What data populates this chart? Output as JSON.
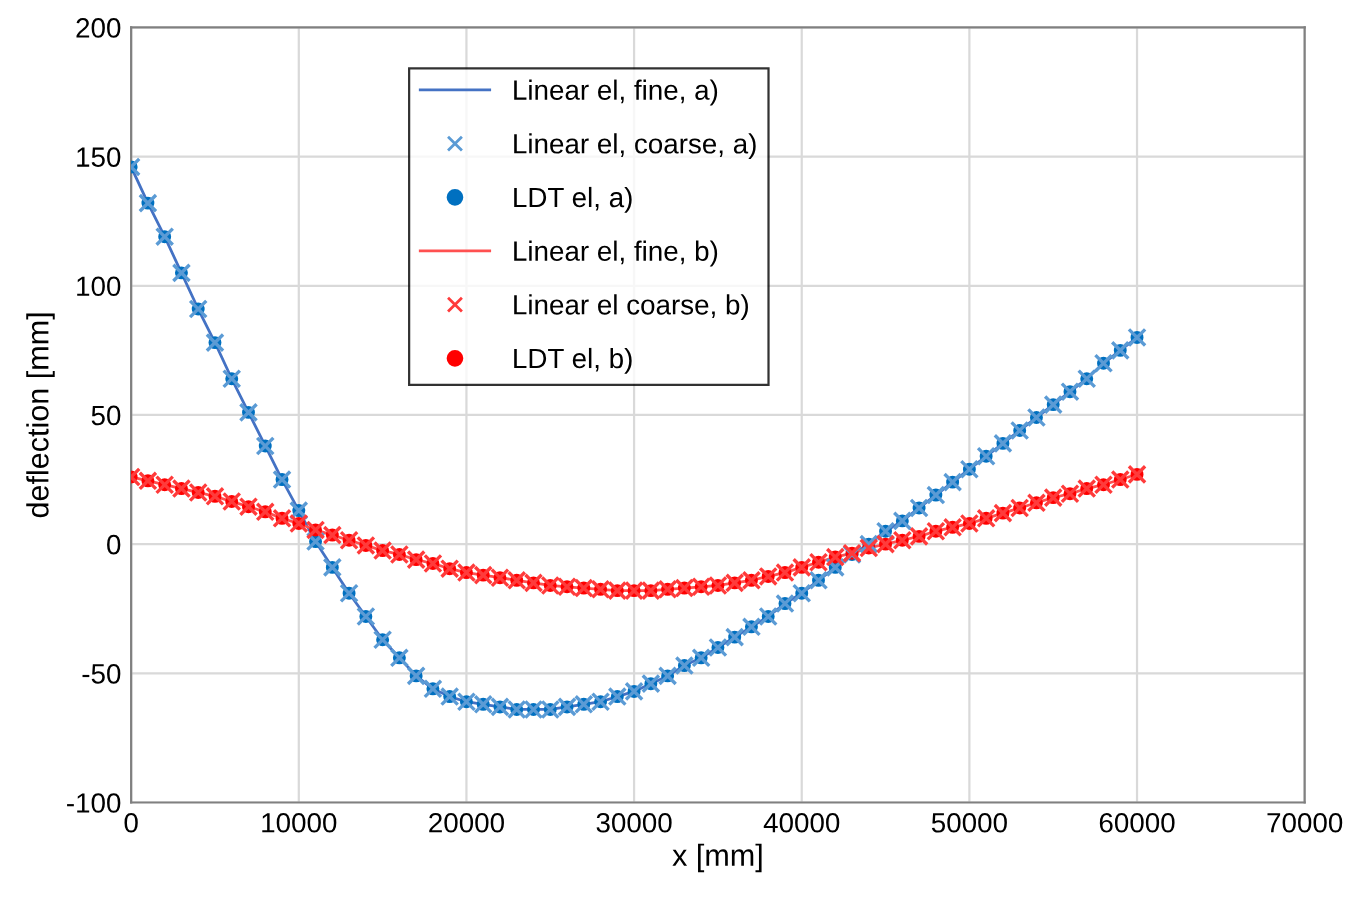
{
  "chart_data": {
    "type": "line",
    "xlabel": "x [mm]",
    "ylabel": "deflection [mm]",
    "xlim": [
      0,
      70000
    ],
    "xticks": [
      0,
      10000,
      20000,
      30000,
      40000,
      50000,
      60000,
      70000
    ],
    "ylim": [
      -100,
      200
    ],
    "yticks": [
      -100,
      -50,
      0,
      50,
      100,
      150,
      200
    ],
    "grid": true,
    "legend": "top",
    "x": [
      0,
      1000,
      2000,
      3000,
      4000,
      5000,
      6000,
      7000,
      8000,
      9000,
      10000,
      11000,
      12000,
      13000,
      14000,
      15000,
      16000,
      17000,
      18000,
      19000,
      20000,
      21000,
      22000,
      23000,
      24000,
      25000,
      26000,
      27000,
      28000,
      29000,
      30000,
      31000,
      32000,
      33000,
      34000,
      35000,
      36000,
      37000,
      38000,
      39000,
      40000,
      41000,
      42000,
      43000,
      44000,
      45000,
      46000,
      47000,
      48000,
      49000,
      50000,
      51000,
      52000,
      53000,
      54000,
      55000,
      56000,
      57000,
      58000,
      59000,
      60000
    ],
    "series": [
      {
        "name": "Linear el, fine, a)",
        "type": "line",
        "marker": "none",
        "line_style": "solid",
        "color": "#4472c4",
        "values": [
          146,
          132,
          119,
          105,
          91,
          78,
          64,
          51,
          38,
          25,
          13,
          1,
          -9,
          -19,
          -28,
          -37,
          -44,
          -51,
          -56,
          -59,
          -61,
          -62,
          -63,
          -64,
          -64,
          -64,
          -63,
          -62,
          -61,
          -59,
          -57,
          -54,
          -51,
          -47,
          -44,
          -40,
          -36,
          -32,
          -28,
          -23,
          -19,
          -14,
          -9,
          -4,
          0,
          5,
          9,
          14,
          19,
          24,
          29,
          34,
          39,
          44,
          49,
          54,
          59,
          64,
          70,
          75,
          80
        ]
      },
      {
        "name": "Linear el, coarse, a)",
        "type": "scatter",
        "marker": "cross",
        "color": "#5b9bd5",
        "values": [
          146,
          132,
          119,
          105,
          91,
          78,
          64,
          51,
          38,
          25,
          13,
          1,
          -9,
          -19,
          -28,
          -37,
          -44,
          -51,
          -56,
          -59,
          -61,
          -62,
          -63,
          -64,
          -64,
          -64,
          -63,
          -62,
          -61,
          -59,
          -57,
          -54,
          -51,
          -47,
          -44,
          -40,
          -36,
          -32,
          -28,
          -23,
          -19,
          -14,
          -9,
          -4,
          0,
          5,
          9,
          14,
          19,
          24,
          29,
          34,
          39,
          44,
          49,
          54,
          59,
          64,
          70,
          75,
          80
        ]
      },
      {
        "name": "LDT el, a)",
        "type": "scatter",
        "marker": "circle",
        "color": "#0070c0",
        "values": [
          146,
          132,
          119,
          105,
          91,
          78,
          64,
          51,
          38,
          25,
          13,
          1,
          -9,
          -19,
          -28,
          -37,
          -44,
          -51,
          -56,
          -59,
          -61,
          -62,
          -63,
          -64,
          -64,
          -64,
          -63,
          -62,
          -61,
          -59,
          -57,
          -54,
          -51,
          -47,
          -44,
          -40,
          -36,
          -32,
          -28,
          -23,
          -19,
          -14,
          -9,
          -4,
          0,
          5,
          9,
          14,
          19,
          24,
          29,
          34,
          39,
          44,
          49,
          54,
          59,
          64,
          70,
          75,
          80
        ]
      },
      {
        "name": "Linear el, fine, b)",
        "type": "line",
        "marker": "none",
        "line_style": "solid",
        "color": "#ff5050",
        "values": [
          26,
          24.5,
          23,
          21.5,
          20,
          18.5,
          16.5,
          14.5,
          12.5,
          10,
          8,
          5.5,
          3.5,
          1.5,
          -0.5,
          -2.5,
          -4,
          -6,
          -7.5,
          -9.5,
          -11,
          -12,
          -13,
          -14,
          -15,
          -16,
          -16.5,
          -17,
          -17.5,
          -18,
          -18,
          -18,
          -17.5,
          -17,
          -16.5,
          -16,
          -15,
          -14,
          -12.5,
          -11,
          -9,
          -7,
          -5,
          -3.5,
          -1.5,
          0,
          1.5,
          3,
          5,
          6.5,
          8,
          10,
          12,
          14,
          16,
          18,
          19.5,
          21.5,
          23,
          25,
          27
        ]
      },
      {
        "name": "Linear el coarse, b)",
        "type": "scatter",
        "marker": "cross",
        "color": "#ff3b3b",
        "values": [
          26,
          24.5,
          23,
          21.5,
          20,
          18.5,
          16.5,
          14.5,
          12.5,
          10,
          8,
          5.5,
          3.5,
          1.5,
          -0.5,
          -2.5,
          -4,
          -6,
          -7.5,
          -9.5,
          -11,
          -12,
          -13,
          -14,
          -15,
          -16,
          -16.5,
          -17,
          -17.5,
          -18,
          -18,
          -18,
          -17.5,
          -17,
          -16.5,
          -16,
          -15,
          -14,
          -12.5,
          -11,
          -9,
          -7,
          -5,
          -3.5,
          -1.5,
          0,
          1.5,
          3,
          5,
          6.5,
          8,
          10,
          12,
          14,
          16,
          18,
          19.5,
          21.5,
          23,
          25,
          27
        ]
      },
      {
        "name": "LDT el, b)",
        "type": "scatter",
        "marker": "circle",
        "color": "#ff0000",
        "values": [
          26,
          24.5,
          23,
          21.5,
          20,
          18.5,
          16.5,
          14.5,
          12.5,
          10,
          8,
          5.5,
          3.5,
          1.5,
          -0.5,
          -2.5,
          -4,
          -6,
          -7.5,
          -9.5,
          -11,
          -12,
          -13,
          -14,
          -15,
          -16,
          -16.5,
          -17,
          -17.5,
          -18,
          -18,
          -18,
          -17.5,
          -17,
          -16.5,
          -16,
          -15,
          -14,
          -12.5,
          -11,
          -9,
          -7,
          -5,
          -3.5,
          -1.5,
          0,
          1.5,
          3,
          5,
          6.5,
          8,
          10,
          12,
          14,
          16,
          18,
          19.5,
          21.5,
          23,
          25,
          27
        ]
      }
    ]
  }
}
